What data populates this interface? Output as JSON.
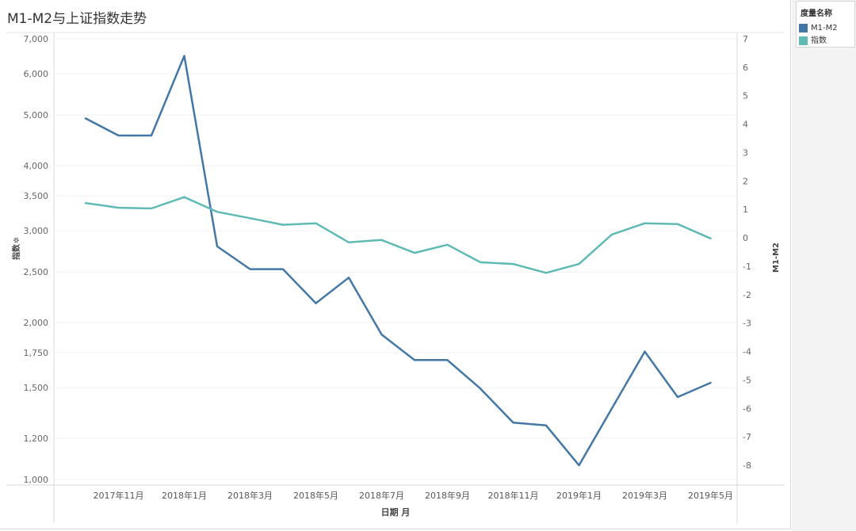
{
  "chart_data": {
    "type": "line",
    "title": "M1-M2与上证指数走势",
    "xlabel": "日期 月",
    "ylabel_left": "指数",
    "ylabel_right": "M1-M2",
    "left_axis": {
      "scale": "log",
      "range": [
        1000,
        7000
      ],
      "ticks": [
        "1,000",
        "1,200",
        "1,500",
        "1,750",
        "2,000",
        "2,500",
        "3,000",
        "3,500",
        "4,000",
        "5,000",
        "6,000",
        "7,000"
      ],
      "tick_values": [
        1000,
        1200,
        1500,
        1750,
        2000,
        2500,
        3000,
        3500,
        4000,
        5000,
        6000,
        7000
      ]
    },
    "right_axis": {
      "scale": "linear",
      "range": [
        -8.5,
        7
      ],
      "ticks": [
        "-8",
        "-7",
        "-6",
        "-5",
        "-4",
        "-3",
        "-2",
        "-1",
        "0",
        "1",
        "2",
        "3",
        "4",
        "5",
        "6",
        "7"
      ],
      "tick_values": [
        -8,
        -7,
        -6,
        -5,
        -4,
        -3,
        -2,
        -1,
        0,
        1,
        2,
        3,
        4,
        5,
        6,
        7
      ]
    },
    "x": [
      "2017-10",
      "2017-11",
      "2017-12",
      "2018-01",
      "2018-02",
      "2018-03",
      "2018-04",
      "2018-05",
      "2018-06",
      "2018-07",
      "2018-08",
      "2018-09",
      "2018-10",
      "2018-11",
      "2018-12",
      "2019-01",
      "2019-02",
      "2019-03",
      "2019-04",
      "2019-05"
    ],
    "x_tick_labels": [
      {
        "at": "2017-11",
        "label": "2017年11月"
      },
      {
        "at": "2018-01",
        "label": "2018年1月"
      },
      {
        "at": "2018-03",
        "label": "2018年3月"
      },
      {
        "at": "2018-05",
        "label": "2018年5月"
      },
      {
        "at": "2018-07",
        "label": "2018年7月"
      },
      {
        "at": "2018-09",
        "label": "2018年9月"
      },
      {
        "at": "2018-11",
        "label": "2018年11月"
      },
      {
        "at": "2019-01",
        "label": "2019年1月"
      },
      {
        "at": "2019-03",
        "label": "2019年3月"
      },
      {
        "at": "2019-05",
        "label": "2019年5月"
      }
    ],
    "series": [
      {
        "name": "M1-M2",
        "axis": "right",
        "color": "#4378a6",
        "values": [
          4.2,
          3.6,
          3.6,
          6.4,
          -0.3,
          -1.1,
          -1.1,
          -2.3,
          -1.4,
          -3.4,
          -4.3,
          -4.3,
          -5.3,
          -6.5,
          -6.6,
          -8.0,
          -6.0,
          -4.0,
          -5.6,
          -5.1
        ]
      },
      {
        "name": "指数",
        "axis": "left",
        "color": "#5fbab4",
        "values": [
          3390,
          3320,
          3310,
          3480,
          3260,
          3170,
          3080,
          3100,
          2850,
          2880,
          2720,
          2820,
          2610,
          2590,
          2490,
          2590,
          2950,
          3100,
          3090,
          2900
        ]
      }
    ],
    "grid": true,
    "legend": {
      "title": "度量名称",
      "position": "top-right",
      "items": [
        {
          "label": "M1-M2",
          "color": "#4378a6"
        },
        {
          "label": "指数",
          "color": "#5fbab4"
        }
      ]
    }
  }
}
